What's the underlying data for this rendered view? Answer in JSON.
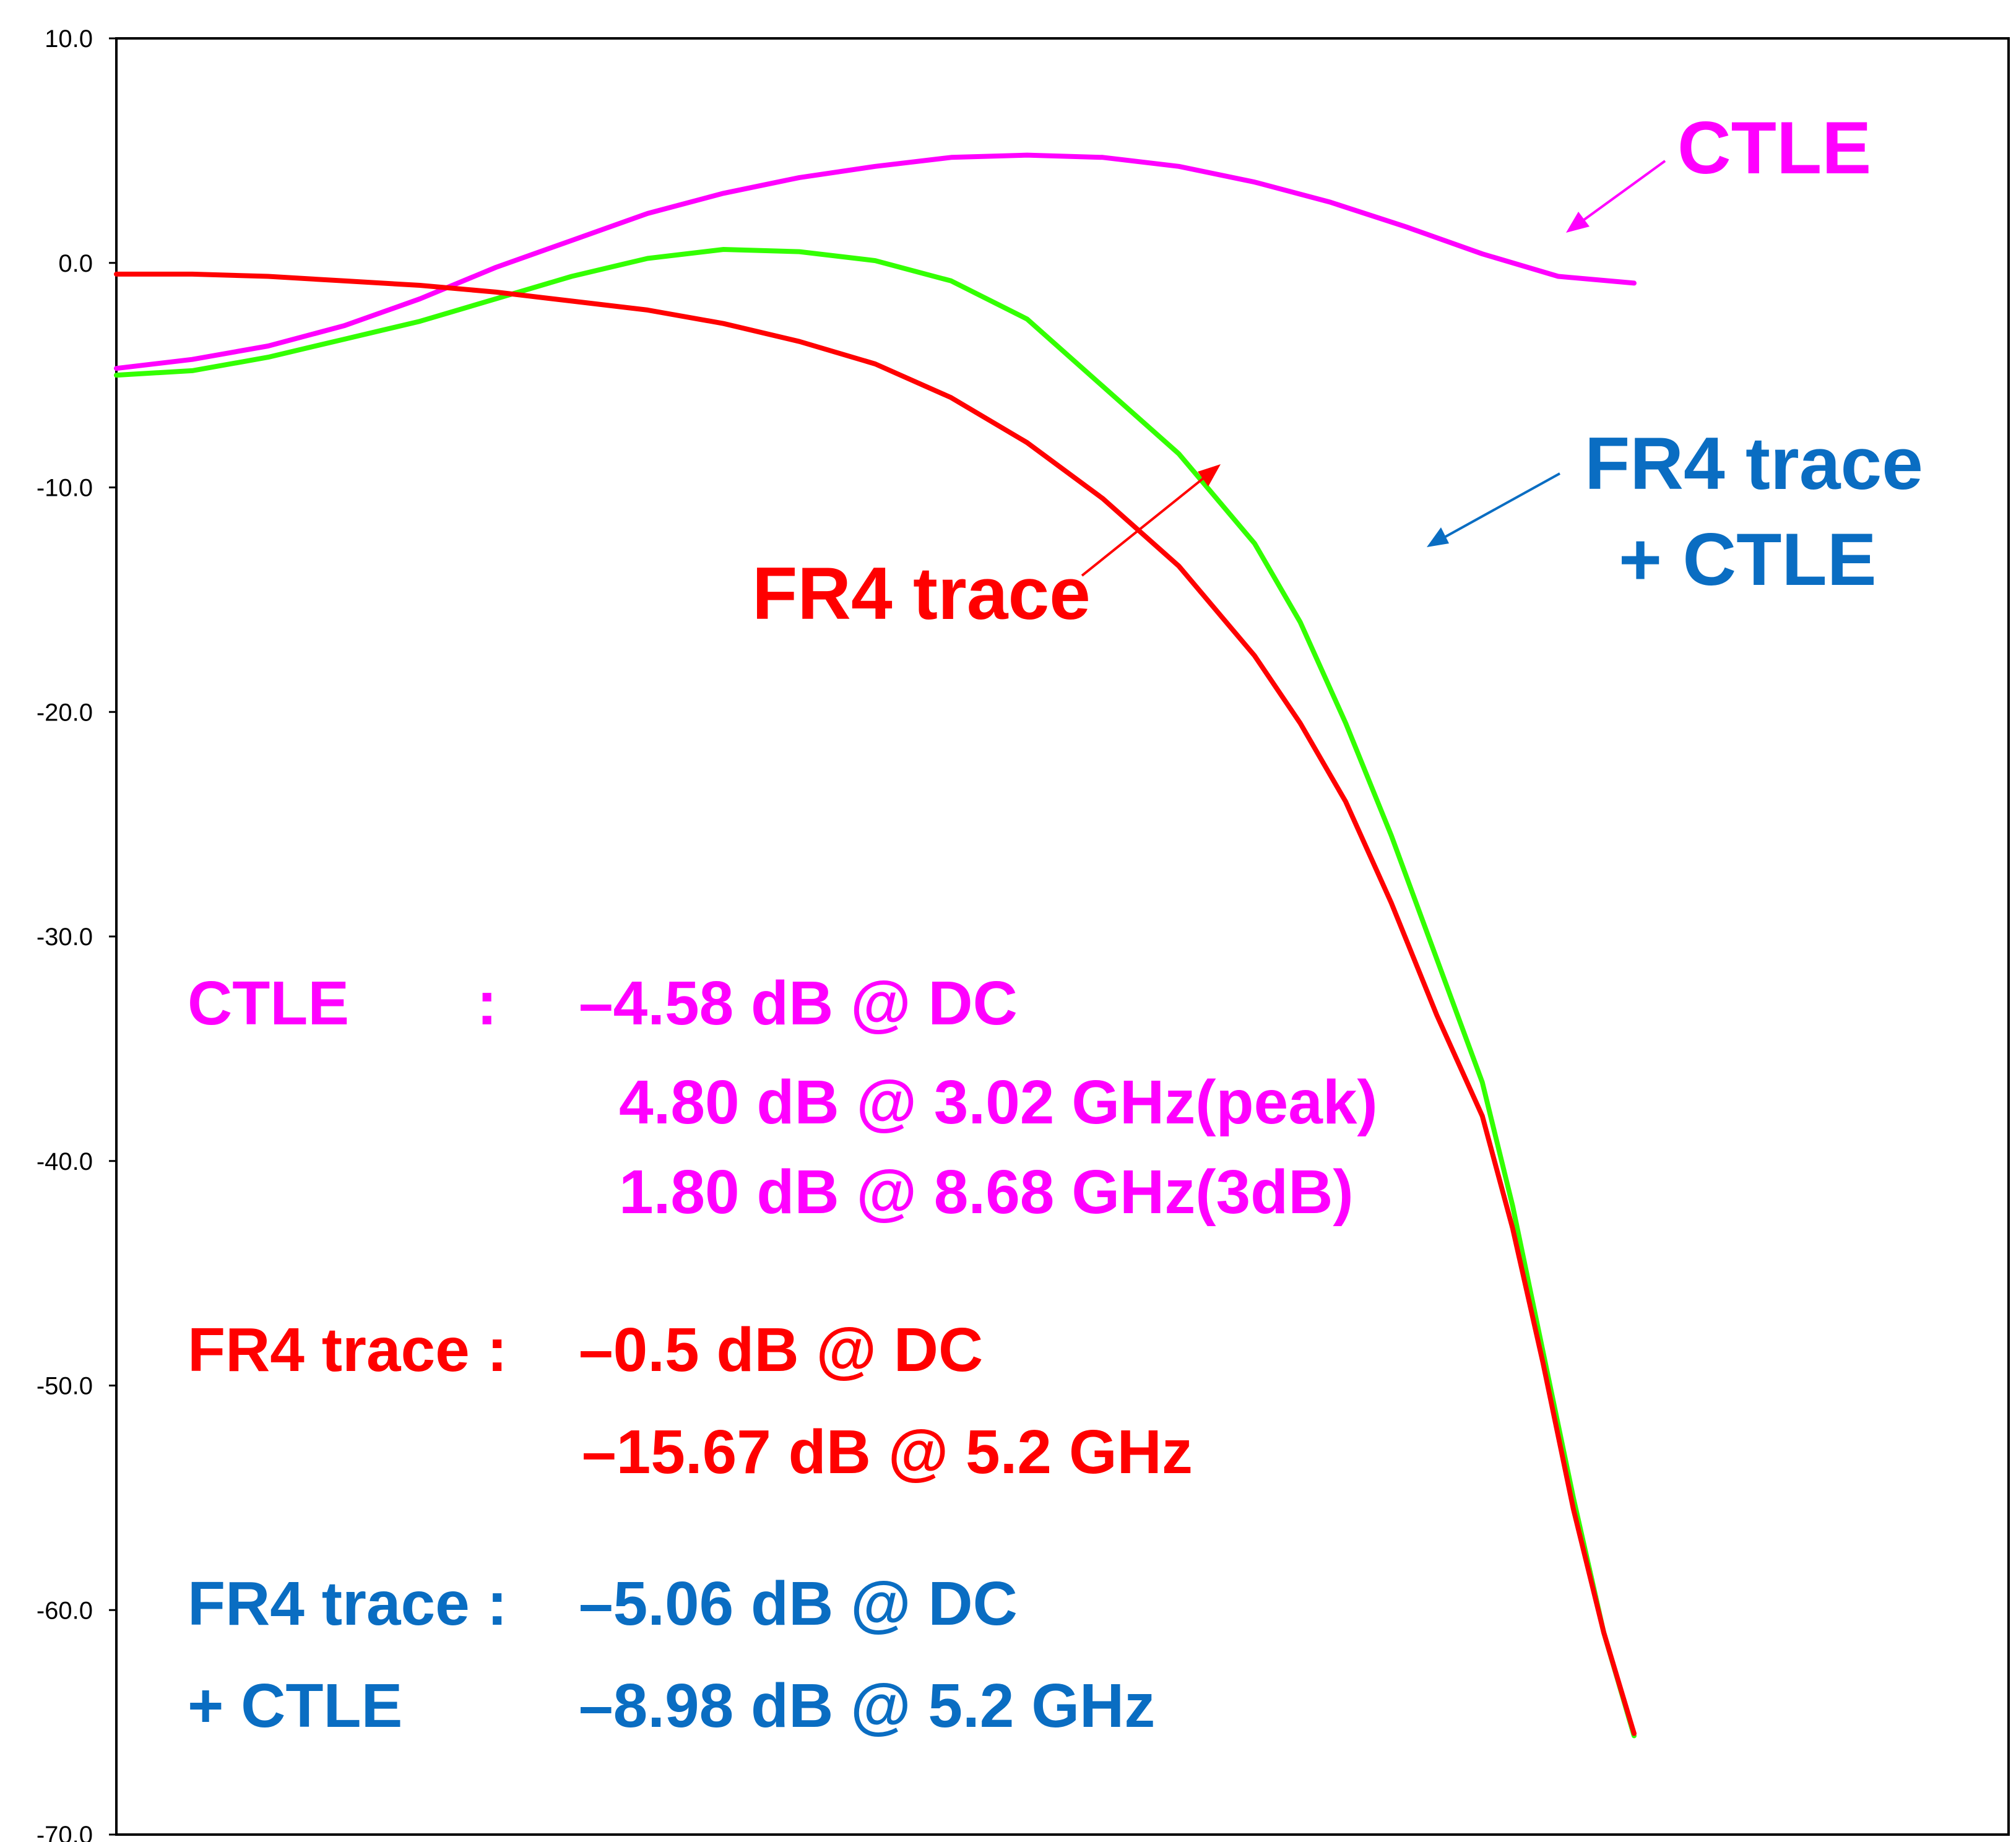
{
  "chart_data": {
    "type": "line",
    "ylim": [
      -70,
      10
    ],
    "y_ticks": [
      "10.0",
      "0.0",
      "-10.0",
      "-20.0",
      "-30.0",
      "-40.0",
      "-50.0",
      "-60.0",
      "-70.0"
    ],
    "grid": false,
    "xlim": [
      0,
      1
    ],
    "series": [
      {
        "name": "CTLE",
        "color": "#ff00ff",
        "x": [
          0,
          0.05,
          0.1,
          0.15,
          0.2,
          0.25,
          0.3,
          0.35,
          0.4,
          0.45,
          0.5,
          0.55,
          0.6,
          0.65,
          0.7,
          0.75,
          0.8,
          0.85,
          0.9,
          0.95,
          1.0
        ],
        "values": [
          -4.7,
          -4.3,
          -3.7,
          -2.8,
          -1.6,
          -0.2,
          1.0,
          2.2,
          3.1,
          3.8,
          4.3,
          4.7,
          4.8,
          4.7,
          4.3,
          3.6,
          2.7,
          1.6,
          0.4,
          -0.6,
          -0.9
        ]
      },
      {
        "name": "FR4 trace",
        "color": "#ff0000",
        "x": [
          0,
          0.05,
          0.1,
          0.15,
          0.2,
          0.25,
          0.3,
          0.35,
          0.4,
          0.45,
          0.5,
          0.55,
          0.6,
          0.65,
          0.7,
          0.75,
          0.78,
          0.81,
          0.84,
          0.87,
          0.9,
          0.92,
          0.94,
          0.96,
          0.98,
          1.0
        ],
        "values": [
          -0.5,
          -0.5,
          -0.6,
          -0.8,
          -1.0,
          -1.3,
          -1.7,
          -2.1,
          -2.7,
          -3.5,
          -4.5,
          -6.0,
          -8.0,
          -10.5,
          -13.5,
          -17.5,
          -20.5,
          -24.0,
          -28.5,
          -33.5,
          -38.0,
          -43.0,
          -49.0,
          -55.5,
          -61.0,
          -65.5
        ]
      },
      {
        "name": "FR4 trace + CTLE",
        "color": "#33ff00",
        "x": [
          0,
          0.05,
          0.1,
          0.15,
          0.2,
          0.25,
          0.3,
          0.35,
          0.4,
          0.45,
          0.5,
          0.55,
          0.6,
          0.65,
          0.7,
          0.75,
          0.78,
          0.81,
          0.84,
          0.87,
          0.9,
          0.92,
          0.94,
          0.96,
          0.98,
          1.0
        ],
        "values": [
          -5.0,
          -4.8,
          -4.2,
          -3.4,
          -2.6,
          -1.6,
          -0.6,
          0.2,
          0.6,
          0.5,
          0.1,
          -0.8,
          -2.5,
          -5.5,
          -8.5,
          -12.5,
          -16.0,
          -20.5,
          -25.5,
          -31.0,
          -36.5,
          -42.0,
          -48.5,
          -55.0,
          -61.0,
          -65.6
        ]
      }
    ],
    "annotations": {
      "ctle_label": "CTLE",
      "fr4_label": "FR4 trace",
      "combo_label_line1": "FR4 trace",
      "combo_label_line2": "+ CTLE"
    }
  },
  "notes": {
    "ctle": {
      "name": "CTLE",
      "colon": ":",
      "lines": [
        "–4.58 dB @ DC",
        "4.80 dB @ 3.02 GHz(peak)",
        "1.80 dB @ 8.68 GHz(3dB)"
      ]
    },
    "fr4": {
      "name": "FR4 trace :",
      "lines": [
        "–0.5 dB @ DC",
        "–15.67 dB @ 5.2 GHz"
      ]
    },
    "combo": {
      "name_line1": "FR4 trace :",
      "name_line2": "+ CTLE",
      "lines": [
        "–5.06 dB @ DC",
        "–8.98 dB @ 5.2 GHz"
      ]
    }
  },
  "colors": {
    "ctle": "#ff00ff",
    "fr4": "#ff0000",
    "combo_curve": "#33ff00",
    "combo_text": "#0a6dc2"
  }
}
